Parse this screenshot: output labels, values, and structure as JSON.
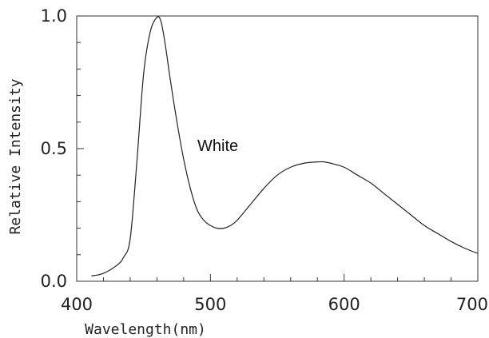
{
  "chart_data": {
    "type": "line",
    "title": "",
    "xlabel": "Wavelength(nm)",
    "ylabel": "Relative Intensity",
    "xlim": [
      400,
      700
    ],
    "ylim": [
      0,
      1.0
    ],
    "grid": false,
    "x_ticks": [
      400,
      500,
      600,
      700
    ],
    "y_ticks": [
      "0.0",
      "0.5",
      "1.0"
    ],
    "annotation": "White",
    "line_color": "#222222",
    "series": [
      {
        "x": [
          411,
          420,
          430,
          435,
          440,
          445,
          450,
          455,
          460,
          463,
          466,
          470,
          475,
          480,
          485,
          490,
          495,
          500,
          505,
          510,
          515,
          520,
          530,
          540,
          550,
          560,
          570,
          580,
          585,
          590,
          600,
          610,
          620,
          630,
          640,
          650,
          660,
          670,
          680,
          690,
          700
        ],
        "y": [
          0.02,
          0.03,
          0.06,
          0.09,
          0.16,
          0.45,
          0.78,
          0.94,
          0.995,
          0.98,
          0.9,
          0.76,
          0.6,
          0.46,
          0.35,
          0.27,
          0.23,
          0.21,
          0.2,
          0.2,
          0.21,
          0.23,
          0.29,
          0.35,
          0.4,
          0.43,
          0.445,
          0.45,
          0.45,
          0.445,
          0.43,
          0.4,
          0.37,
          0.33,
          0.29,
          0.25,
          0.21,
          0.18,
          0.15,
          0.125,
          0.105
        ]
      }
    ]
  }
}
